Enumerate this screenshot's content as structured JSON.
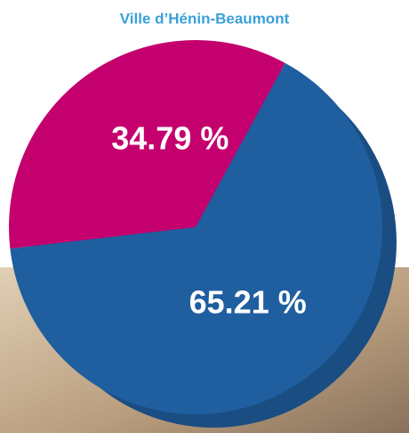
{
  "chart_data": {
    "type": "pie",
    "title": "Ville d’Hénin-Beaumont",
    "values": [
      34.79,
      65.21
    ],
    "value_labels": [
      "34.79 %",
      "65.21 %"
    ],
    "colors": [
      "#c4006e",
      "#1f5fa0"
    ]
  }
}
